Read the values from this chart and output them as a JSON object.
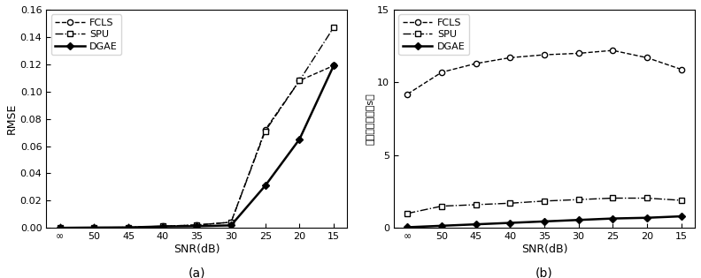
{
  "x_labels": [
    "∞",
    "50",
    "45",
    "40",
    "35",
    "30",
    "25",
    "20",
    "15"
  ],
  "x_values": [
    0,
    1,
    2,
    3,
    4,
    5,
    6,
    7,
    8
  ],
  "a_FCLS": [
    0.0001,
    0.0003,
    0.0004,
    0.0012,
    0.0022,
    0.0042,
    0.072,
    0.108,
    0.119
  ],
  "a_SPU": [
    0.0001,
    0.0003,
    0.0005,
    0.0013,
    0.0022,
    0.0042,
    0.071,
    0.108,
    0.147
  ],
  "a_DGAE": [
    0.0001,
    0.0003,
    0.0004,
    0.0011,
    0.0013,
    0.0019,
    0.031,
    0.065,
    0.119
  ],
  "b_FCLS": [
    9.2,
    10.7,
    11.3,
    11.7,
    11.9,
    12.0,
    12.2,
    11.7,
    10.9
  ],
  "b_SPU": [
    1.0,
    1.5,
    1.6,
    1.7,
    1.85,
    1.95,
    2.05,
    2.05,
    1.9
  ],
  "b_DGAE": [
    0.05,
    0.15,
    0.25,
    0.35,
    0.45,
    0.55,
    0.65,
    0.7,
    0.8
  ],
  "ylabel_a": "RMSE",
  "ylabel_b": "算法运行时间（s）",
  "xlabel": "SNR(dB)",
  "label_a": "(a)",
  "label_b": "(b)",
  "legend_FCLS": "FCLS",
  "legend_SPU": "SPU",
  "legend_DGAE": "DGAE",
  "ylim_a": [
    0,
    0.16
  ],
  "yticks_a": [
    0,
    0.02,
    0.04,
    0.06,
    0.08,
    0.1,
    0.12,
    0.14,
    0.16
  ],
  "ylim_b": [
    0,
    15
  ],
  "yticks_b": [
    0,
    5,
    10,
    15
  ]
}
